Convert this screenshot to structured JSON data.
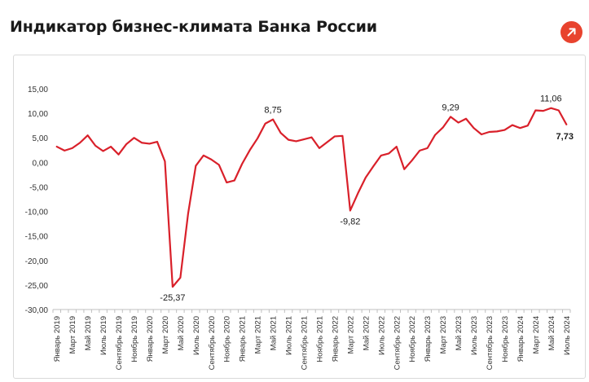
{
  "page": {
    "title": "Индикатор бизнес-климата Банка России",
    "share_icon": "arrow-up-right-icon",
    "accent_color": "#e8432e"
  },
  "chart_data": {
    "type": "line",
    "title": "",
    "xlabel": "",
    "ylabel": "",
    "ylim": [
      -30,
      15
    ],
    "yticks": [
      -30,
      -25,
      -20,
      -15,
      -10,
      -5,
      0,
      5,
      10,
      15
    ],
    "ytick_labels": [
      "-30,00",
      "-25,00",
      "-20,00",
      "-15,00",
      "-10,00",
      "-5,00",
      "0,00",
      "5,00",
      "10,00",
      "15,00"
    ],
    "grid": false,
    "legend": "none",
    "line_color": "#d9202a",
    "x_labels": [
      "Январь 2019",
      "Март 2019",
      "Май 2019",
      "Июль 2019",
      "Сентябрь 2019",
      "Ноябрь 2019",
      "Январь 2020",
      "Март 2020",
      "Май 2020",
      "Июль 2020",
      "Сентябрь 2020",
      "Ноябрь 2020",
      "Январь 2021",
      "Март 2021",
      "Май 2021",
      "Июль 2021",
      "Сентябрь 2021",
      "Ноябрь 2021",
      "Январь 2022",
      "Март 2022",
      "Май 2022",
      "Июль 2022",
      "Сентябрь 2022",
      "Ноябрь 2022",
      "Январь 2023",
      "Март 2023",
      "Май 2023",
      "Июль 2023",
      "Сентябрь 2023",
      "Ноябрь 2023",
      "Январь 2024",
      "Март 2024",
      "Май 2024",
      "Июль 2024"
    ],
    "series": [
      {
        "values": [
          3.2,
          2.4,
          2.9,
          4.0,
          5.5,
          3.4,
          2.3,
          3.2,
          1.6,
          3.7,
          5.0,
          4.0,
          3.8,
          4.2,
          0.2,
          -25.37,
          -23.5,
          -10.5,
          -0.7,
          1.4,
          0.6,
          -0.5,
          -4.1,
          -3.7,
          -0.3,
          2.5,
          4.9,
          7.9,
          8.75,
          6.0,
          4.6,
          4.3,
          4.7,
          5.1,
          2.9,
          4.1,
          5.3,
          5.4,
          -9.82,
          -6.3,
          -3.1,
          -0.8,
          1.4,
          1.8,
          3.2,
          -1.4,
          0.4,
          2.4,
          2.9,
          5.6,
          7.1,
          9.29,
          8.1,
          8.9,
          7.0,
          5.7,
          6.2,
          6.3,
          6.6,
          7.6,
          7.0,
          7.5,
          10.6,
          10.5,
          11.06,
          10.6,
          7.73
        ]
      }
    ],
    "annotations": [
      {
        "index": 15,
        "text": "-25,37",
        "position": "below",
        "bold": false
      },
      {
        "index": 28,
        "text": "8,75",
        "position": "above",
        "bold": false
      },
      {
        "index": 38,
        "text": "-9,82",
        "position": "below",
        "bold": false
      },
      {
        "index": 51,
        "text": "9,29",
        "position": "above",
        "bold": false
      },
      {
        "index": 64,
        "text": "11,06",
        "position": "above",
        "bold": false
      },
      {
        "index": 66,
        "text": "7,73",
        "position": "right-below",
        "bold": true
      }
    ]
  }
}
